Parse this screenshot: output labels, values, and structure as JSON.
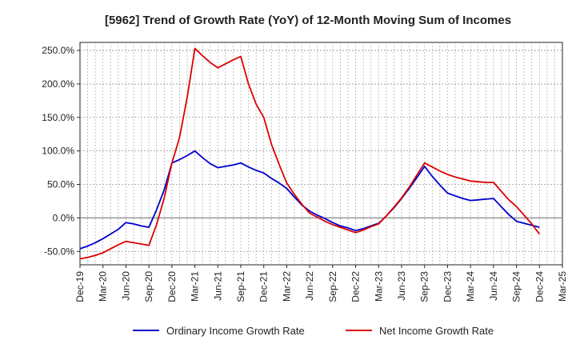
{
  "chart_data": {
    "type": "line",
    "title": "[5962]  Trend of Growth Rate (YoY) of 12-Month Moving Sum of Incomes",
    "xlabel": "",
    "ylabel": "",
    "ylim": [
      -70,
      262
    ],
    "y_ticks": [
      -50,
      0,
      50,
      100,
      150,
      200,
      250
    ],
    "y_tick_labels": [
      "-50.0%",
      "0.0%",
      "50.0%",
      "100.0%",
      "150.0%",
      "200.0%",
      "250.0%"
    ],
    "x_tick_labels": [
      "Dec-19",
      "Mar-20",
      "Jun-20",
      "Sep-20",
      "Dec-20",
      "Mar-21",
      "Jun-21",
      "Sep-21",
      "Dec-21",
      "Mar-22",
      "Jun-22",
      "Sep-22",
      "Dec-22",
      "Mar-23",
      "Jun-23",
      "Sep-23",
      "Dec-23",
      "Mar-24",
      "Jun-24",
      "Sep-24",
      "Dec-24",
      "Mar-25"
    ],
    "x": [
      "Dec-19",
      "Jan-20",
      "Feb-20",
      "Mar-20",
      "Apr-20",
      "May-20",
      "Jun-20",
      "Jul-20",
      "Aug-20",
      "Sep-20",
      "Oct-20",
      "Nov-20",
      "Dec-20",
      "Jan-21",
      "Feb-21",
      "Mar-21",
      "Apr-21",
      "May-21",
      "Jun-21",
      "Jul-21",
      "Aug-21",
      "Sep-21",
      "Oct-21",
      "Nov-21",
      "Dec-21",
      "Jan-22",
      "Feb-22",
      "Mar-22",
      "Apr-22",
      "May-22",
      "Jun-22",
      "Jul-22",
      "Aug-22",
      "Sep-22",
      "Oct-22",
      "Nov-22",
      "Dec-22",
      "Jan-23",
      "Feb-23",
      "Mar-23",
      "Apr-23",
      "May-23",
      "Jun-23",
      "Jul-23",
      "Aug-23",
      "Sep-23",
      "Oct-23",
      "Nov-23",
      "Dec-23",
      "Jan-24",
      "Feb-24",
      "Mar-24",
      "Apr-24",
      "May-24",
      "Jun-24",
      "Jul-24",
      "Aug-24",
      "Sep-24",
      "Oct-24",
      "Nov-24",
      "Dec-24"
    ],
    "series": [
      {
        "name": "Ordinary Income Growth Rate",
        "color": "#0000cc",
        "values": [
          -46,
          -42,
          -37,
          -31,
          -24,
          -17,
          -7,
          -9,
          -12,
          -14,
          12,
          42,
          82,
          87,
          93,
          100,
          90,
          81,
          75,
          77,
          79,
          82,
          76,
          71,
          67,
          59,
          52,
          44,
          31,
          19,
          10,
          4,
          -1,
          -7,
          -12,
          -15,
          -19,
          -16,
          -12,
          -8,
          3,
          15,
          29,
          44,
          60,
          77,
          62,
          49,
          37,
          33,
          29,
          26,
          27,
          28,
          29,
          17,
          5,
          -5,
          -8,
          -11,
          -14
        ]
      },
      {
        "name": "Net Income Growth Rate",
        "color": "#dd0000",
        "values": [
          -61,
          -59,
          -56,
          -52,
          -46,
          -40,
          -35,
          -37,
          -39,
          -41,
          -10,
          30,
          82,
          120,
          180,
          253,
          242,
          232,
          224,
          230,
          236,
          241,
          200,
          170,
          150,
          110,
          80,
          52,
          35,
          20,
          7,
          1,
          -5,
          -10,
          -14,
          -18,
          -22,
          -18,
          -13,
          -9,
          3,
          16,
          30,
          46,
          64,
          82,
          76,
          70,
          65,
          61,
          58,
          55,
          54,
          53,
          53,
          40,
          27,
          17,
          4,
          -9,
          -24
        ]
      }
    ],
    "legend_position": "bottom",
    "grid": true,
    "zero_line": true
  }
}
